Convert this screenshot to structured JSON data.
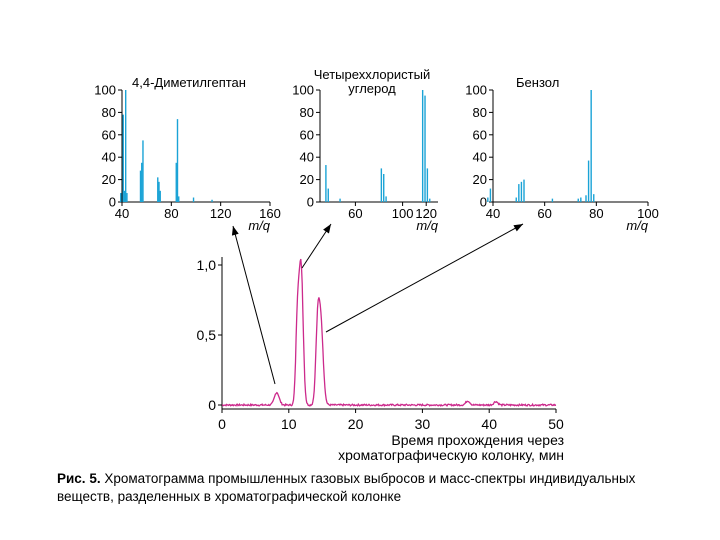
{
  "colors": {
    "spectrum": "#1aa3d6",
    "chromatogram": "#cc2a8c",
    "axis": "#000000"
  },
  "chart_data": [
    {
      "type": "bar",
      "id": "spectrum-dimethylheptane",
      "title": "4,4-Диметилгептан",
      "xlabel": "m/q",
      "xlim": [
        40,
        160
      ],
      "ylim": [
        0,
        100
      ],
      "xticks": [
        40,
        80,
        120,
        160
      ],
      "yticks": [
        0,
        20,
        40,
        60,
        80,
        100
      ],
      "points": [
        {
          "x": 39,
          "y": 8
        },
        {
          "x": 41,
          "y": 78
        },
        {
          "x": 42,
          "y": 10
        },
        {
          "x": 43,
          "y": 100
        },
        {
          "x": 44,
          "y": 8
        },
        {
          "x": 55,
          "y": 28
        },
        {
          "x": 56,
          "y": 35
        },
        {
          "x": 57,
          "y": 55
        },
        {
          "x": 69,
          "y": 22
        },
        {
          "x": 70,
          "y": 18
        },
        {
          "x": 71,
          "y": 10
        },
        {
          "x": 84,
          "y": 35
        },
        {
          "x": 85,
          "y": 74
        },
        {
          "x": 86,
          "y": 5
        },
        {
          "x": 98,
          "y": 4
        },
        {
          "x": 113,
          "y": 2
        }
      ]
    },
    {
      "type": "bar",
      "id": "spectrum-ccl4",
      "title": "Четыреххлористый углерод",
      "title_lines": [
        "Четыреххлористый",
        "углерод"
      ],
      "xlabel": "m/q",
      "xlim": [
        30,
        130
      ],
      "ylim": [
        0,
        100
      ],
      "xticks": [
        60,
        100,
        120
      ],
      "yticks": [
        0,
        20,
        40,
        60,
        80,
        100
      ],
      "points": [
        {
          "x": 35,
          "y": 33
        },
        {
          "x": 37,
          "y": 12
        },
        {
          "x": 47,
          "y": 3
        },
        {
          "x": 82,
          "y": 30
        },
        {
          "x": 84,
          "y": 25
        },
        {
          "x": 86,
          "y": 5
        },
        {
          "x": 117,
          "y": 100
        },
        {
          "x": 119,
          "y": 95
        },
        {
          "x": 121,
          "y": 30
        },
        {
          "x": 123,
          "y": 3
        }
      ]
    },
    {
      "type": "bar",
      "id": "spectrum-benzene",
      "title": "Бензол",
      "xlabel": "m/q",
      "xlim": [
        40,
        100
      ],
      "ylim": [
        0,
        100
      ],
      "xticks": [
        40,
        60,
        80,
        100
      ],
      "yticks": [
        0,
        20,
        40,
        60,
        80,
        100
      ],
      "points": [
        {
          "x": 38,
          "y": 4
        },
        {
          "x": 39,
          "y": 12
        },
        {
          "x": 49,
          "y": 4
        },
        {
          "x": 50,
          "y": 16
        },
        {
          "x": 51,
          "y": 18
        },
        {
          "x": 52,
          "y": 20
        },
        {
          "x": 63,
          "y": 3
        },
        {
          "x": 73,
          "y": 3
        },
        {
          "x": 74,
          "y": 4
        },
        {
          "x": 76,
          "y": 6
        },
        {
          "x": 77,
          "y": 37
        },
        {
          "x": 78,
          "y": 100
        },
        {
          "x": 79,
          "y": 7
        }
      ]
    },
    {
      "type": "line",
      "id": "chromatogram",
      "xlabel": "Время прохождения через хроматографическую колонку, мин",
      "xlabel_lines": [
        "Время прохождения через",
        "хроматографическую колонку, мин"
      ],
      "xlim": [
        0,
        50
      ],
      "ylim": [
        0,
        1
      ],
      "xticks": [
        0,
        10,
        20,
        30,
        40,
        50
      ],
      "yticks": [
        0,
        0.5,
        1
      ],
      "ytick_labels": [
        "0",
        "0,5",
        "1,0"
      ],
      "baseline": 0,
      "peaks": [
        {
          "x": 8.2,
          "y": 0.09,
          "w": 0.35
        },
        {
          "x": 11.3,
          "y": 0.6,
          "w": 0.25
        },
        {
          "x": 11.85,
          "y": 0.97,
          "w": 0.3
        },
        {
          "x": 14.3,
          "y": 0.48,
          "w": 0.28
        },
        {
          "x": 14.8,
          "y": 0.57,
          "w": 0.35
        },
        {
          "x": 36.8,
          "y": 0.03,
          "w": 0.3
        },
        {
          "x": 41.0,
          "y": 0.025,
          "w": 0.3
        }
      ]
    }
  ],
  "caption": {
    "lead": "Рис. 5.",
    "text": " Хроматограмма промышленных газовых выбросов и масс-спектры индивидуальных веществ, разделенных в хроматографической колонке"
  }
}
